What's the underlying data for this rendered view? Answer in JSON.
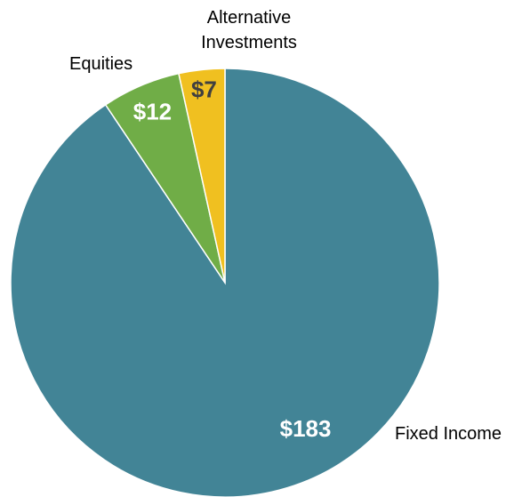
{
  "chart_data": {
    "type": "pie",
    "categories": [
      "Fixed Income",
      "Equities",
      "Alternative Investments"
    ],
    "values": [
      183,
      12,
      7
    ],
    "value_labels": [
      "$183",
      "$12",
      "$7"
    ],
    "colors": [
      "#428496",
      "#70ad47",
      "#f0c020"
    ]
  }
}
